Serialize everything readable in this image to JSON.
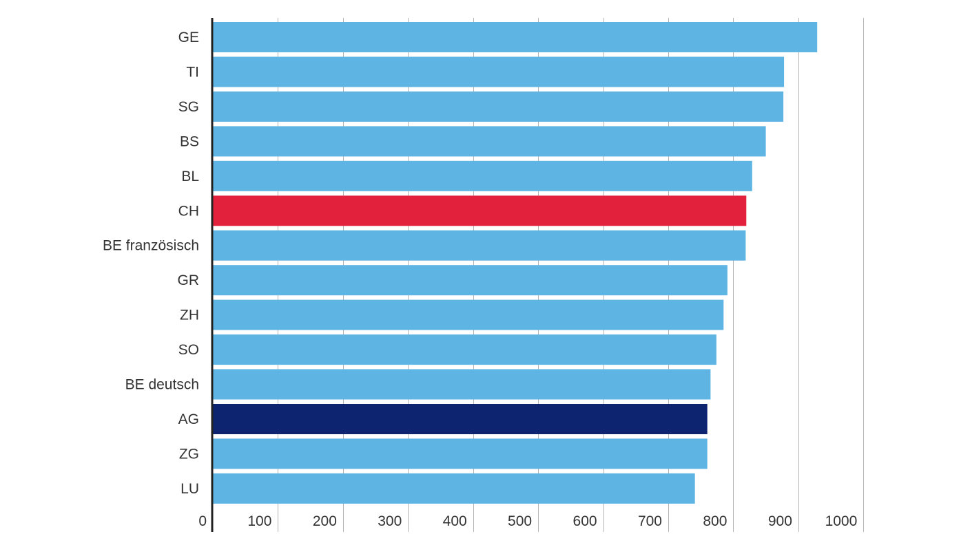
{
  "chart_data": {
    "type": "bar",
    "orientation": "horizontal",
    "categories": [
      "GE",
      "TI",
      "SG",
      "BS",
      "BL",
      "CH",
      "BE französisch",
      "GR",
      "ZH",
      "SO",
      "BE deutsch",
      "AG",
      "ZG",
      "LU"
    ],
    "values": [
      929,
      878,
      877,
      850,
      829,
      820,
      819,
      791,
      785,
      774,
      765,
      760,
      760,
      741
    ],
    "xlim": [
      0,
      1000
    ],
    "xticks": [
      0,
      100,
      200,
      300,
      400,
      500,
      600,
      700,
      800,
      900,
      1000
    ],
    "xtick_labels": [
      "0",
      "100",
      "200",
      "300",
      "400",
      "500",
      "600",
      "700",
      "800",
      "900",
      "1000"
    ],
    "grid": "vertical",
    "title": "",
    "xlabel": "",
    "ylabel": "",
    "colors": {
      "default": "#5eb5e3",
      "highlight_ch": "#e2223c",
      "highlight_ag": "#0d2470",
      "grid": "#b3b3b3",
      "axis": "#222222",
      "text": "#333333"
    },
    "bar_colors": [
      "default",
      "default",
      "default",
      "default",
      "default",
      "highlight_ch",
      "default",
      "default",
      "default",
      "default",
      "default",
      "highlight_ag",
      "default",
      "default"
    ]
  }
}
